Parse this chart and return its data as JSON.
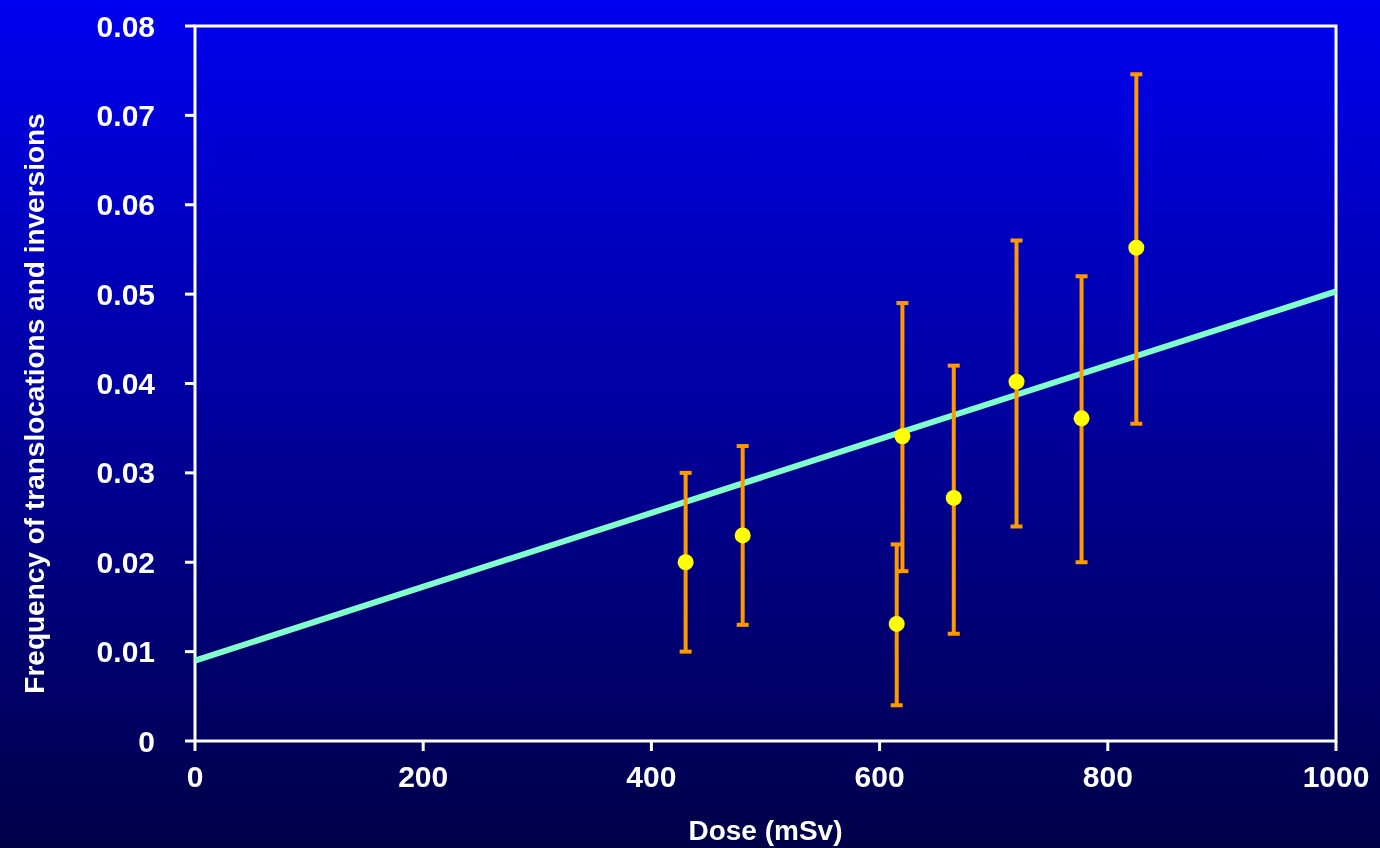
{
  "chart_data": {
    "type": "scatter",
    "xlabel": "Dose (mSv)",
    "ylabel": "Frequency of translocations and inversions",
    "xlim": [
      0,
      1000
    ],
    "xticks": [
      0,
      200,
      400,
      600,
      800,
      1000
    ],
    "ylim": [
      0,
      0.08
    ],
    "yticks": [
      0,
      0.01,
      0.02,
      0.03,
      0.04,
      0.05,
      0.06,
      0.07,
      0.08
    ],
    "grid": false,
    "series": [
      {
        "type": "line",
        "color": "#80ffcc",
        "x": [
          0,
          1000
        ],
        "values": [
          0.009,
          0.0503
        ],
        "line_style": "solid",
        "marker": "none"
      },
      {
        "color": "#ffff00",
        "marker": "circle",
        "x": [
          430,
          480,
          615,
          620,
          665,
          720,
          777,
          825
        ],
        "values": [
          0.02,
          0.023,
          0.0131,
          0.0341,
          0.0272,
          0.0402,
          0.0361,
          0.0552
        ],
        "errors": [
          [
            0.01,
            0.03
          ],
          [
            0.013,
            0.033
          ],
          [
            0.004,
            0.022
          ],
          [
            0.019,
            0.049
          ],
          [
            0.012,
            0.042
          ],
          [
            0.024,
            0.056
          ],
          [
            0.02,
            0.052
          ],
          [
            0.0355,
            0.0746
          ]
        ]
      }
    ]
  }
}
